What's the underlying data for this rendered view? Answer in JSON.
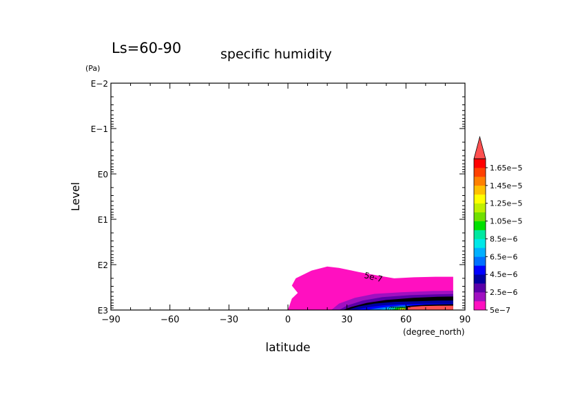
{
  "chart_data": {
    "type": "contour",
    "panel_label": "Ls=60-90",
    "title": "specific humidity",
    "xlabel": "latitude",
    "x_units": "(degree_north)",
    "ylabel": "Level",
    "y_units": "(Pa)",
    "xlim": [
      -90,
      90
    ],
    "ylim": [
      1000,
      0.01
    ],
    "y_scale": "log",
    "x_ticks": [
      -90,
      -60,
      -30,
      0,
      30,
      60,
      90
    ],
    "x_tick_labels": [
      "−90",
      "−60",
      "−30",
      "0",
      "30",
      "60",
      "90"
    ],
    "y_ticks": [
      0.01,
      0.1,
      1,
      10,
      100,
      1000
    ],
    "y_tick_labels": [
      "E−2",
      "E−1",
      "E0",
      "E1",
      "E2",
      "E3"
    ],
    "contour_label": "5e-7",
    "colorbar": {
      "levels": [
        5e-07,
        1.5e-06,
        2.5e-06,
        3.5e-06,
        4.5e-06,
        5.5e-06,
        6.5e-06,
        7.5e-06,
        8.5e-06,
        9.5e-06,
        1.05e-05,
        1.15e-05,
        1.25e-05,
        1.35e-05,
        1.45e-05,
        1.55e-05,
        1.65e-05
      ],
      "tick_labels": [
        "5e−7",
        "2.5e−6",
        "4.5e−6",
        "6.5e−6",
        "8.5e−6",
        "1.05e−5",
        "1.25e−5",
        "1.45e−5",
        "1.65e−5"
      ],
      "colors": [
        "#ff10c0",
        "#a010c0",
        "#5a00a8",
        "#0000a0",
        "#0000ff",
        "#0070ff",
        "#00b0ff",
        "#00e8e8",
        "#00e8a0",
        "#00e000",
        "#70e000",
        "#c0f000",
        "#ffff00",
        "#ffc000",
        "#ff8000",
        "#ff4000",
        "#ff0000",
        "#ff5050"
      ],
      "extend": "max"
    },
    "regions": [
      {
        "level_min": 5e-07,
        "lat_range": [
          2,
          85
        ],
        "top_pressure_approx": 100,
        "color": "#ff10c0"
      },
      {
        "level_min": 2.5e-06,
        "lat_range": [
          28,
          85
        ],
        "top_pressure_approx": 400,
        "color": "#0000a0"
      },
      {
        "level_min": 1.65e-05,
        "lat_range": [
          60,
          85
        ],
        "top_pressure_approx": 700,
        "color": "#ff5050"
      }
    ]
  }
}
